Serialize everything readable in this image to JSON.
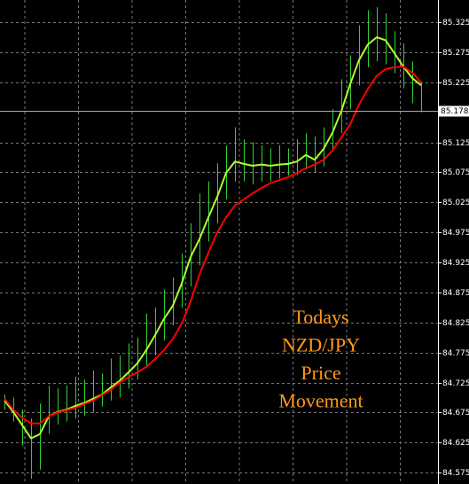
{
  "chart_data": {
    "type": "ohlc",
    "annotation": [
      "Todays",
      "NZD/JPY",
      "Price",
      "Movement"
    ],
    "bar_color": "#2fd12f",
    "high": [
      84.705,
      84.7,
      84.68,
      84.665,
      84.69,
      84.72,
      84.715,
      84.72,
      84.735,
      84.73,
      84.745,
      84.74,
      84.765,
      84.77,
      84.79,
      84.8,
      84.84,
      84.85,
      84.88,
      84.9,
      84.94,
      84.99,
      85.04,
      85.06,
      85.09,
      85.12,
      85.15,
      85.13,
      85.125,
      85.12,
      85.115,
      85.12,
      85.115,
      85.13,
      85.14,
      85.135,
      85.15,
      85.18,
      85.23,
      85.27,
      85.32,
      85.345,
      85.35,
      85.34,
      85.31,
      85.29,
      85.26,
      85.225
    ],
    "low": [
      84.68,
      84.66,
      84.62,
      84.565,
      84.58,
      84.64,
      84.655,
      84.66,
      84.665,
      84.67,
      84.675,
      84.685,
      84.695,
      84.7,
      84.715,
      84.73,
      84.75,
      84.77,
      84.795,
      84.82,
      84.85,
      84.885,
      84.92,
      84.96,
      84.99,
      85.03,
      85.06,
      85.06,
      85.055,
      85.06,
      85.06,
      85.065,
      85.07,
      85.07,
      85.08,
      85.075,
      85.085,
      85.11,
      85.14,
      85.18,
      85.22,
      85.25,
      85.26,
      85.255,
      85.24,
      85.215,
      85.19,
      85.175
    ],
    "series": [
      {
        "color": "#adff2f",
        "values": [
          84.695,
          84.676,
          84.654,
          84.632,
          84.639,
          84.669,
          84.676,
          84.68,
          84.686,
          84.691,
          84.698,
          84.705,
          84.717,
          84.728,
          84.742,
          84.757,
          84.779,
          84.804,
          84.831,
          84.853,
          84.89,
          84.934,
          84.964,
          85.0,
          85.034,
          85.074,
          85.093,
          85.089,
          85.086,
          85.088,
          85.086,
          85.088,
          85.089,
          85.093,
          85.104,
          85.096,
          85.114,
          85.141,
          85.177,
          85.222,
          85.262,
          85.288,
          85.3,
          85.295,
          85.273,
          85.251,
          85.232,
          85.22
        ]
      },
      {
        "color": "#ff0000",
        "values": [
          84.698,
          84.68,
          84.666,
          84.657,
          84.657,
          84.669,
          84.675,
          84.679,
          84.683,
          84.689,
          84.695,
          84.704,
          84.713,
          84.725,
          84.734,
          84.742,
          84.751,
          84.764,
          84.779,
          84.798,
          84.823,
          84.86,
          84.905,
          84.941,
          84.975,
          85.0,
          85.02,
          85.03,
          85.04,
          85.049,
          85.057,
          85.062,
          85.067,
          85.074,
          85.082,
          85.088,
          85.096,
          85.111,
          85.133,
          85.155,
          85.188,
          85.214,
          85.236,
          85.247,
          85.25,
          85.251,
          85.241,
          85.225
        ]
      }
    ],
    "current_price": 85.178,
    "ylim": [
      84.556,
      85.362
    ],
    "yticks": [
      84.575,
      84.625,
      84.675,
      84.725,
      84.775,
      84.825,
      84.875,
      84.925,
      84.975,
      85.025,
      85.075,
      85.125,
      85.225,
      85.275,
      85.325
    ],
    "grid": true
  }
}
